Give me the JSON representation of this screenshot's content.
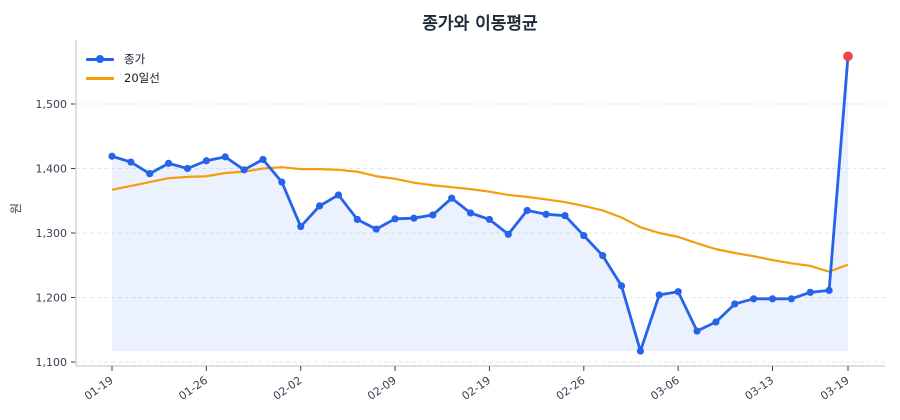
{
  "chart_data": {
    "type": "line",
    "title": "종가와 이동평균",
    "xlabel": "",
    "ylabel": "원",
    "ylim": [
      1095,
      1595
    ],
    "yticks": [
      1100,
      1200,
      1300,
      1400,
      1500
    ],
    "ytick_labels": [
      "1,100",
      "1,200",
      "1,300",
      "1,400",
      "1,500"
    ],
    "xtick_labels": [
      "01-19",
      "01-26",
      "02-02",
      "02-09",
      "02-19",
      "02-26",
      "03-06",
      "03-13",
      "03-19"
    ],
    "xtick_indices": [
      0,
      5,
      10,
      15,
      20,
      25,
      30,
      35,
      39
    ],
    "grid": "horizontal dashed",
    "legend_position": "upper left",
    "x": [
      0,
      1,
      2,
      3,
      4,
      5,
      6,
      7,
      8,
      9,
      10,
      11,
      12,
      13,
      14,
      15,
      16,
      17,
      18,
      19,
      20,
      21,
      22,
      23,
      24,
      25,
      26,
      27,
      28,
      29,
      30,
      31,
      32,
      33,
      34,
      35,
      36,
      37,
      38,
      39
    ],
    "series": [
      {
        "name": "종가",
        "color": "#2563eb",
        "marker": "circle",
        "fill": true,
        "values": [
          1419,
          1410,
          1392,
          1408,
          1400,
          1412,
          1418,
          1398,
          1414,
          1379,
          1310,
          1342,
          1359,
          1321,
          1306,
          1322,
          1323,
          1328,
          1354,
          1331,
          1321,
          1298,
          1335,
          1329,
          1327,
          1296,
          1265,
          1218,
          1117,
          1204,
          1209,
          1148,
          1162,
          1190,
          1198,
          1198,
          1198,
          1208,
          1211,
          1574
        ]
      },
      {
        "name": "20일선",
        "color": "#f59e0b",
        "marker": "none",
        "fill": false,
        "values": [
          1367,
          1373,
          1379,
          1385,
          1387,
          1388,
          1393,
          1395,
          1400,
          1402,
          1399,
          1399,
          1398,
          1395,
          1388,
          1384,
          1378,
          1374,
          1371,
          1368,
          1364,
          1359,
          1356,
          1352,
          1348,
          1342,
          1335,
          1324,
          1309,
          1300,
          1294,
          1284,
          1275,
          1269,
          1264,
          1258,
          1253,
          1249,
          1240,
          1251
        ]
      }
    ],
    "highlight": {
      "index": 39,
      "value": 1574,
      "color": "#ef4444"
    }
  },
  "legend": {
    "items": [
      {
        "label": "종가"
      },
      {
        "label": "20일선"
      }
    ]
  }
}
